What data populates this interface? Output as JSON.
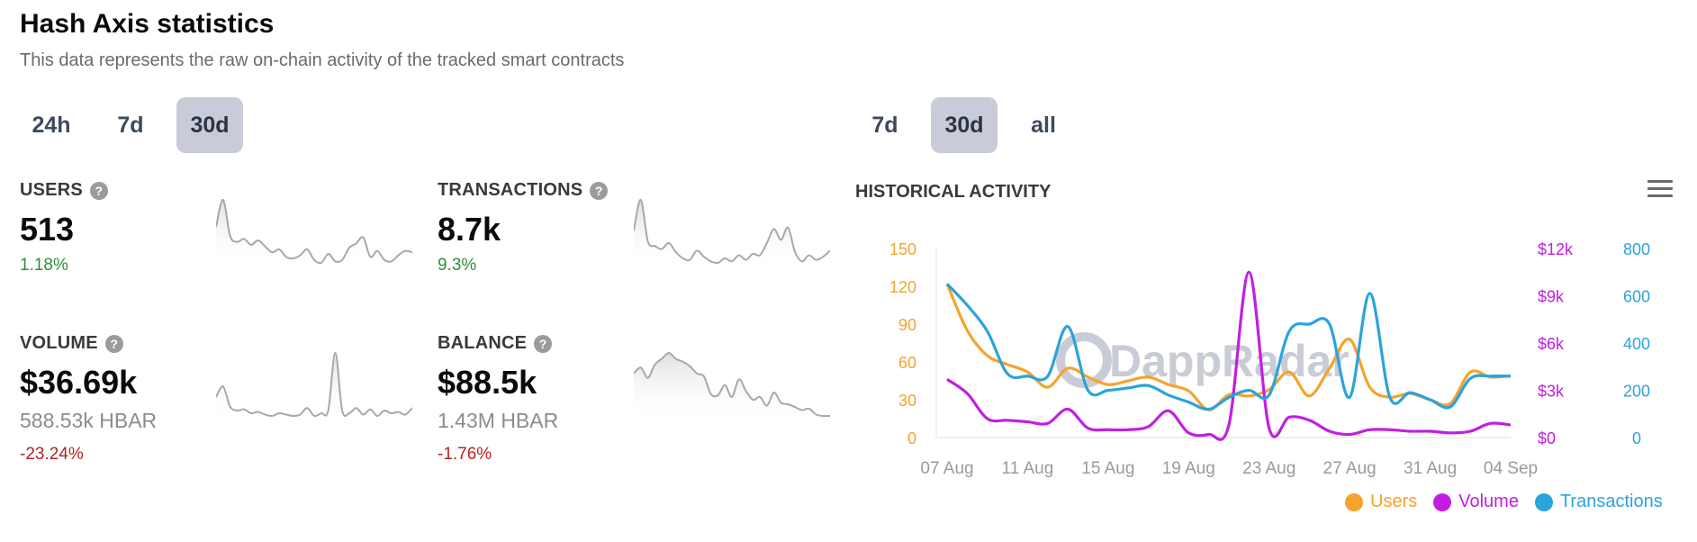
{
  "header": {
    "title": "Hash Axis statistics",
    "subtitle": "This data represents the raw on-chain activity of the tracked smart contracts"
  },
  "range_tabs_left": [
    {
      "label": "24h",
      "active": false
    },
    {
      "label": "7d",
      "active": false
    },
    {
      "label": "30d",
      "active": true
    }
  ],
  "range_tabs_right": [
    {
      "label": "7d",
      "active": false
    },
    {
      "label": "30d",
      "active": true
    },
    {
      "label": "all",
      "active": false
    }
  ],
  "stats": {
    "users": {
      "label": "USERS",
      "value": "513",
      "change": "1.18%",
      "change_dir": "up",
      "sparkline": [
        52,
        70,
        46,
        42,
        44,
        40,
        43,
        39,
        35,
        37,
        32,
        31,
        33,
        37,
        30,
        28,
        34,
        29,
        30,
        38,
        41,
        45,
        32,
        36,
        30,
        29,
        33,
        36,
        35
      ]
    },
    "transactions": {
      "label": "TRANSACTIONS",
      "value": "8.7k",
      "change": "9.3%",
      "change_dir": "up",
      "sparkline": [
        50,
        70,
        43,
        40,
        38,
        42,
        36,
        32,
        31,
        37,
        33,
        30,
        29,
        32,
        30,
        34,
        31,
        35,
        34,
        42,
        51,
        44,
        52,
        36,
        30,
        34,
        31,
        33,
        37
      ]
    },
    "volume": {
      "label": "VOLUME",
      "value": "$36.69k",
      "secondary": "588.53k HBAR",
      "change": "-23.24%",
      "change_dir": "down",
      "sparkline": [
        22,
        30,
        15,
        12,
        13,
        10,
        11,
        9,
        8,
        10,
        9,
        8,
        9,
        14,
        8,
        10,
        12,
        55,
        12,
        10,
        14,
        9,
        13,
        8,
        12,
        10,
        11,
        9,
        14
      ]
    },
    "balance": {
      "label": "BALANCE",
      "value": "$88.5k",
      "secondary": "1.43M HBAR",
      "change": "-1.76%",
      "change_dir": "down",
      "sparkline": [
        60,
        64,
        57,
        66,
        70,
        74,
        70,
        68,
        65,
        60,
        58,
        46,
        45,
        52,
        44,
        56,
        48,
        42,
        44,
        38,
        47,
        40,
        39,
        37,
        35,
        36,
        32,
        31,
        31
      ]
    }
  },
  "historical": {
    "title": "HISTORICAL ACTIVITY",
    "watermark": "DappRadar",
    "legend": [
      {
        "name": "Users",
        "color": "#f5a32a"
      },
      {
        "name": "Volume",
        "color": "#c21ee3"
      },
      {
        "name": "Transactions",
        "color": "#2ba3dc"
      }
    ]
  },
  "chart_data": {
    "type": "line",
    "title": "HISTORICAL ACTIVITY",
    "x": [
      "07 Aug",
      "08 Aug",
      "09 Aug",
      "10 Aug",
      "11 Aug",
      "12 Aug",
      "13 Aug",
      "14 Aug",
      "15 Aug",
      "16 Aug",
      "17 Aug",
      "18 Aug",
      "19 Aug",
      "20 Aug",
      "21 Aug",
      "22 Aug",
      "23 Aug",
      "24 Aug",
      "25 Aug",
      "26 Aug",
      "27 Aug",
      "28 Aug",
      "29 Aug",
      "30 Aug",
      "31 Aug",
      "01 Sep",
      "02 Sep",
      "03 Sep",
      "04 Sep"
    ],
    "x_tick_labels": [
      "07 Aug",
      "11 Aug",
      "15 Aug",
      "19 Aug",
      "23 Aug",
      "27 Aug",
      "31 Aug",
      "04 Sep"
    ],
    "series": [
      {
        "name": "Users",
        "axis": "left",
        "color": "#f5a32a",
        "values": [
          122,
          85,
          65,
          58,
          52,
          40,
          55,
          48,
          42,
          45,
          48,
          42,
          37,
          22,
          34,
          33,
          38,
          52,
          33,
          55,
          78,
          40,
          32,
          35,
          30,
          27,
          52,
          48,
          49
        ]
      },
      {
        "name": "Volume",
        "axis": "right1",
        "color": "#c21ee3",
        "values": [
          3700,
          2800,
          1200,
          1100,
          1000,
          900,
          1800,
          600,
          500,
          500,
          700,
          1700,
          300,
          200,
          800,
          10500,
          600,
          1300,
          1100,
          400,
          200,
          500,
          500,
          400,
          400,
          300,
          400,
          900,
          800
        ]
      },
      {
        "name": "Transactions",
        "axis": "right2",
        "color": "#2ba3dc",
        "values": [
          650,
          560,
          450,
          270,
          260,
          260,
          470,
          200,
          200,
          210,
          220,
          180,
          150,
          120,
          170,
          200,
          180,
          450,
          480,
          480,
          170,
          610,
          170,
          190,
          160,
          130,
          250,
          260,
          260
        ]
      }
    ],
    "axes": {
      "left": {
        "ticks": [
          "0",
          "30",
          "60",
          "90",
          "120",
          "150"
        ],
        "range": [
          0,
          150
        ],
        "color": "#f5a32a"
      },
      "right1": {
        "ticks": [
          "$0",
          "$3k",
          "$6k",
          "$9k",
          "$12k"
        ],
        "range": [
          0,
          12000
        ],
        "color": "#c21ee3"
      },
      "right2": {
        "ticks": [
          "0",
          "200",
          "400",
          "600",
          "800"
        ],
        "range": [
          0,
          800
        ],
        "color": "#2ba3dc"
      }
    },
    "grid": false,
    "legend_position": "bottom-right"
  }
}
